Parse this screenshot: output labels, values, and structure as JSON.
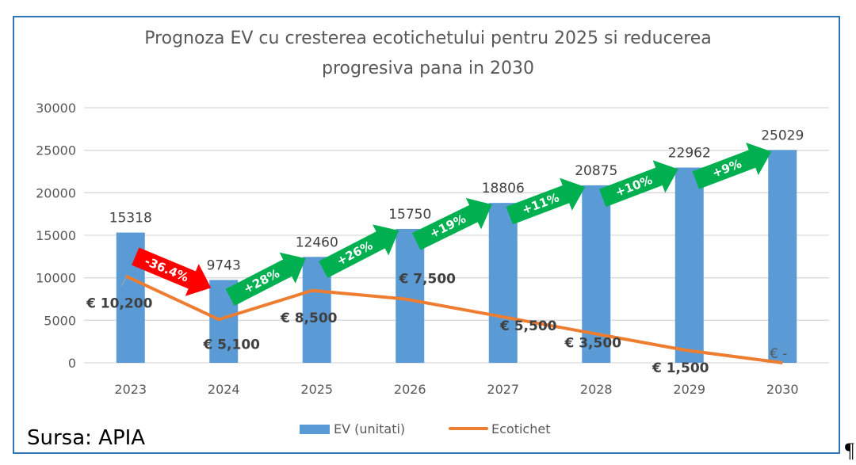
{
  "chart_data": {
    "type": "bar",
    "title": "Prognoza EV cu cresterea ecotichetului pentru 2025 si reducerea progresiva pana in 2030",
    "title_lines": [
      "Prognoza EV cu cresterea ecotichetului pentru 2025 si reducerea",
      "progresiva pana in 2030"
    ],
    "xlabel": "",
    "ylabel": "",
    "ylim": [
      0,
      30000
    ],
    "yticks": [
      0,
      5000,
      10000,
      15000,
      20000,
      25000,
      30000
    ],
    "grid": true,
    "categories": [
      "2023",
      "2024",
      "2025",
      "2026",
      "2027",
      "2028",
      "2029",
      "2030"
    ],
    "series": [
      {
        "name": "EV (unitati)",
        "type": "bar",
        "color": "#5b9bd5",
        "values": [
          15318,
          9743,
          12460,
          15750,
          18806,
          20875,
          22962,
          25029
        ],
        "labels": [
          "15318",
          "9743",
          "12460",
          "15750",
          "18806",
          "20875",
          "22962",
          "25029"
        ]
      },
      {
        "name": "Ecotichet",
        "type": "line",
        "color": "#ed7d31",
        "values": [
          10200,
          5100,
          8500,
          7500,
          5500,
          3500,
          1500,
          0
        ],
        "labels": [
          "€ 10,200",
          "€ 5,100",
          "€ 8,500",
          "€ 7,500",
          "€ 5,500",
          "€ 3,500",
          "€ 1,500",
          "€ -"
        ]
      }
    ],
    "annotations": [
      {
        "from": "2023",
        "to": "2024",
        "text": "-36.4%",
        "color": "#ff0000"
      },
      {
        "from": "2024",
        "to": "2025",
        "text": "+28%",
        "color": "#00b050"
      },
      {
        "from": "2025",
        "to": "2026",
        "text": "+26%",
        "color": "#00b050"
      },
      {
        "from": "2026",
        "to": "2027",
        "text": "+19%",
        "color": "#00b050"
      },
      {
        "from": "2027",
        "to": "2028",
        "text": "+11%",
        "color": "#00b050"
      },
      {
        "from": "2028",
        "to": "2029",
        "text": "+10%",
        "color": "#00b050"
      },
      {
        "from": "2029",
        "to": "2030",
        "text": "+9%",
        "color": "#00b050"
      }
    ],
    "legend": {
      "placement": "bottom",
      "entries": [
        "EV (unitati)",
        "Ecotichet"
      ]
    }
  },
  "source_note": "Sursa: APIA",
  "pilcrow": "¶"
}
